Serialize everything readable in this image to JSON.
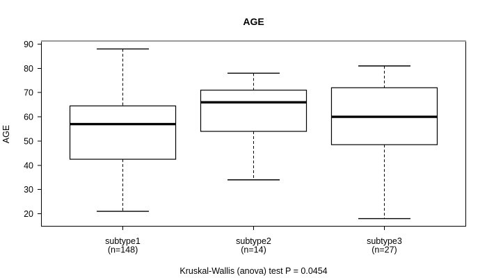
{
  "chart_data": {
    "type": "box",
    "title": "AGE",
    "ylabel": "AGE",
    "caption": "Kruskal-Wallis (anova) test P = 0.0454",
    "ylim": [
      15,
      91
    ],
    "xlim": [
      0.38,
      3.62
    ],
    "yticks": [
      20,
      30,
      40,
      50,
      60,
      70,
      80,
      90
    ],
    "grid": false,
    "groups": [
      {
        "label": "subtype1",
        "sublabel": "(n=148)",
        "n": 148,
        "position": 1,
        "whisker_low": 21,
        "q1": 42.5,
        "median": 57,
        "q3": 64.5,
        "whisker_high": 88,
        "outliers": []
      },
      {
        "label": "subtype2",
        "sublabel": "(n=14)",
        "n": 14,
        "position": 2,
        "whisker_low": 34,
        "q1": 54,
        "median": 66,
        "q3": 71,
        "whisker_high": 78,
        "outliers": []
      },
      {
        "label": "subtype3",
        "sublabel": "(n=27)",
        "n": 27,
        "position": 3,
        "whisker_low": 18,
        "q1": 48.5,
        "median": 60,
        "q3": 72,
        "whisker_high": 81,
        "outliers": []
      }
    ],
    "colors": {
      "line": "#000000",
      "box_fill": "#ffffff",
      "text": "#000000",
      "frame_top_shade": "#999999",
      "background": "#ffffff"
    }
  }
}
